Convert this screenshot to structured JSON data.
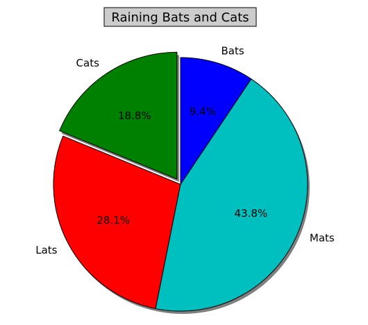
{
  "chart_data": {
    "type": "pie",
    "title": "Raining Bats and Cats",
    "title_box_color": "#cccccc",
    "start_angle_deg": 90,
    "direction": "counterclockwise",
    "shadow": true,
    "slices": [
      {
        "label": "Cats",
        "value": 18.8,
        "pct_label": "18.8%",
        "color": "#008000",
        "explode": 0.05
      },
      {
        "label": "Lats",
        "value": 28.1,
        "pct_label": "28.1%",
        "color": "#ff0000",
        "explode": 0
      },
      {
        "label": "Mats",
        "value": 43.8,
        "pct_label": "43.8%",
        "color": "#00bfbf",
        "explode": 0
      },
      {
        "label": "Bats",
        "value": 9.4,
        "pct_label": "9.4%",
        "color": "#0000ff",
        "explode": 0
      }
    ]
  }
}
